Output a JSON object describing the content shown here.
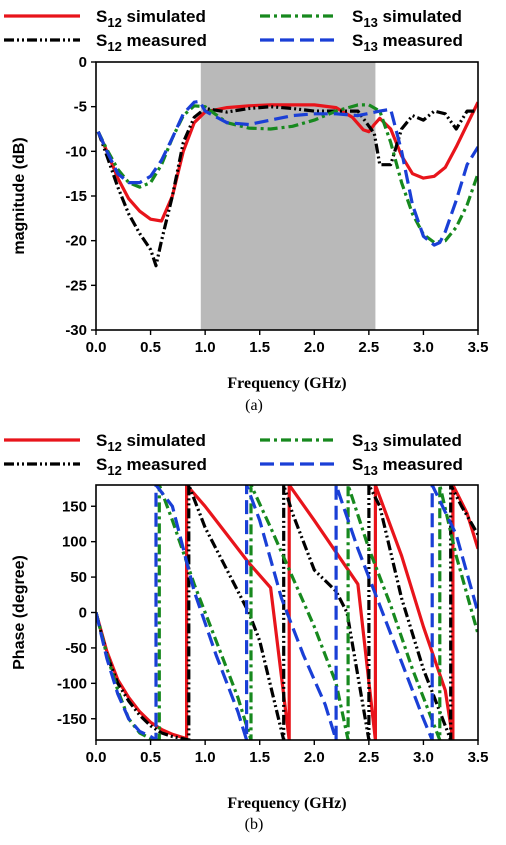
{
  "chart_data": [
    {
      "type": "line",
      "caption": "(a)",
      "xlabel": "Frequency (GHz)",
      "ylabel": "magnitude (dB)",
      "xlim": [
        0,
        3.5
      ],
      "ylim": [
        -30,
        0
      ],
      "xticks": [
        "0.0",
        "0.5",
        "1.0",
        "1.5",
        "2.0",
        "2.5",
        "3.0",
        "3.5"
      ],
      "yticks": [
        "0",
        "-5",
        "-10",
        "-15",
        "-20",
        "-25",
        "-30"
      ],
      "shaded_band": [
        0.96,
        2.56
      ],
      "legend": [
        {
          "base": "S",
          "sub": "12",
          "suffix": " simulated",
          "color": "#e8141b",
          "dash": "solid"
        },
        {
          "base": "S",
          "sub": "12",
          "suffix": " measured",
          "color": "#000000",
          "dash": "dashdotdot"
        },
        {
          "base": "S",
          "sub": "13",
          "suffix": " simulated",
          "color": "#17891e",
          "dash": "dashdot"
        },
        {
          "base": "S",
          "sub": "13",
          "suffix": " measured",
          "color": "#1a3fd6",
          "dash": "dash"
        }
      ],
      "series": [
        {
          "name": "S12 simulated",
          "color": "#e8141b",
          "dash": "solid",
          "x": [
            0.02,
            0.1,
            0.2,
            0.3,
            0.4,
            0.5,
            0.6,
            0.7,
            0.8,
            0.9,
            1.0,
            1.2,
            1.4,
            1.6,
            1.8,
            2.0,
            2.2,
            2.35,
            2.45,
            2.5,
            2.55,
            2.6,
            2.7,
            2.8,
            2.9,
            3.0,
            3.1,
            3.2,
            3.3,
            3.4,
            3.5
          ],
          "y": [
            -7.8,
            -10,
            -13,
            -15.3,
            -16.7,
            -17.6,
            -17.8,
            -15,
            -10,
            -6.8,
            -5.6,
            -5.1,
            -4.9,
            -4.8,
            -4.8,
            -4.8,
            -5.1,
            -6.2,
            -7.6,
            -7.8,
            -7,
            -6.3,
            -7.5,
            -10.5,
            -12.5,
            -13,
            -12.8,
            -11.8,
            -9.5,
            -7,
            -4.5
          ]
        },
        {
          "name": "S12 measured",
          "color": "#000000",
          "dash": "dashdotdot",
          "x": [
            0.02,
            0.1,
            0.2,
            0.3,
            0.4,
            0.5,
            0.55,
            0.6,
            0.7,
            0.8,
            0.9,
            1.0,
            1.2,
            1.4,
            1.6,
            1.8,
            2.0,
            2.2,
            2.4,
            2.55,
            2.6,
            2.7,
            2.8,
            2.9,
            3.0,
            3.1,
            3.2,
            3.3,
            3.4,
            3.5
          ],
          "y": [
            -7.8,
            -10.5,
            -14,
            -17,
            -19.2,
            -21,
            -22.8,
            -20,
            -15,
            -9,
            -6.2,
            -5.2,
            -5.6,
            -5.2,
            -5,
            -5.2,
            -5.5,
            -5.5,
            -5.5,
            -8,
            -11.5,
            -11.5,
            -7.5,
            -6,
            -6.5,
            -5.5,
            -5.8,
            -7.5,
            -5.5,
            -5.5
          ]
        },
        {
          "name": "S13 simulated",
          "color": "#17891e",
          "dash": "dashdot",
          "x": [
            0.02,
            0.1,
            0.2,
            0.3,
            0.4,
            0.5,
            0.6,
            0.7,
            0.8,
            0.9,
            1.0,
            1.2,
            1.4,
            1.6,
            1.8,
            2.0,
            2.2,
            2.4,
            2.5,
            2.6,
            2.7,
            2.8,
            2.9,
            3.0,
            3.1,
            3.2,
            3.3,
            3.4,
            3.5
          ],
          "y": [
            -7.8,
            -9.8,
            -12,
            -13.5,
            -14,
            -13.5,
            -11.5,
            -8.5,
            -6,
            -4.9,
            -5,
            -6.8,
            -7.4,
            -7.5,
            -7.2,
            -6.5,
            -5.5,
            -4.8,
            -4.8,
            -5.5,
            -9,
            -13.5,
            -17,
            -19.3,
            -20.2,
            -20,
            -18.5,
            -16,
            -12.5
          ]
        },
        {
          "name": "S13 measured",
          "color": "#1a3fd6",
          "dash": "dash",
          "x": [
            0.02,
            0.1,
            0.2,
            0.3,
            0.4,
            0.5,
            0.6,
            0.7,
            0.8,
            0.9,
            0.95,
            1.0,
            1.2,
            1.4,
            1.6,
            1.8,
            2.0,
            2.2,
            2.4,
            2.6,
            2.7,
            2.8,
            2.9,
            3.0,
            3.1,
            3.15,
            3.2,
            3.3,
            3.4,
            3.5
          ],
          "y": [
            -7.8,
            -10,
            -12.5,
            -13.5,
            -13.5,
            -12.8,
            -11,
            -8.5,
            -5.8,
            -4.5,
            -4.4,
            -5.5,
            -6.8,
            -7,
            -6.5,
            -6,
            -5.8,
            -5.8,
            -6,
            -5.5,
            -5.3,
            -10,
            -16,
            -19.5,
            -20.5,
            -20.2,
            -19,
            -15.5,
            -11.5,
            -9.5
          ]
        }
      ]
    },
    {
      "type": "line",
      "caption": "(b)",
      "xlabel": "Frequency (GHz)",
      "ylabel": "Phase (degree)",
      "xlim": [
        0,
        3.5
      ],
      "ylim": [
        -180,
        180
      ],
      "xticks": [
        "0.0",
        "0.5",
        "1.0",
        "1.5",
        "2.0",
        "2.5",
        "3.0",
        "3.5"
      ],
      "yticks": [
        "150",
        "100",
        "50",
        "0",
        "-50",
        "-100",
        "-150"
      ],
      "legend": [
        {
          "base": "S",
          "sub": "12",
          "suffix": " simulated",
          "color": "#e8141b",
          "dash": "solid"
        },
        {
          "base": "S",
          "sub": "12",
          "suffix": " measured",
          "color": "#000000",
          "dash": "dashdotdot"
        },
        {
          "base": "S",
          "sub": "13",
          "suffix": " simulated",
          "color": "#17891e",
          "dash": "dashdot"
        },
        {
          "base": "S",
          "sub": "13",
          "suffix": " measured",
          "color": "#1a3fd6",
          "dash": "dash"
        }
      ],
      "series": [
        {
          "name": "S12 simulated",
          "color": "#e8141b",
          "dash": "solid",
          "x": [
            0.0,
            0.1,
            0.2,
            0.3,
            0.4,
            0.5,
            0.6,
            0.7,
            0.83,
            0.83,
            1.0,
            1.2,
            1.4,
            1.6,
            1.77,
            1.77,
            2.0,
            2.2,
            2.4,
            2.56,
            2.56,
            2.8,
            3.0,
            3.2,
            3.27,
            3.27,
            3.4,
            3.5
          ],
          "y": [
            0,
            -55,
            -95,
            -120,
            -140,
            -155,
            -165,
            -172,
            -178,
            180,
            150,
            110,
            70,
            35,
            -180,
            180,
            130,
            85,
            40,
            -180,
            180,
            80,
            -20,
            -110,
            -180,
            180,
            140,
            90
          ]
        },
        {
          "name": "S12 measured",
          "color": "#000000",
          "dash": "dashdotdot",
          "x": [
            0.0,
            0.1,
            0.2,
            0.3,
            0.4,
            0.5,
            0.6,
            0.7,
            0.85,
            0.85,
            0.9,
            1.0,
            1.2,
            1.4,
            1.5,
            1.72,
            1.72,
            1.8,
            2.0,
            2.2,
            2.3,
            2.5,
            2.5,
            2.6,
            2.8,
            3.0,
            3.2,
            3.25,
            3.25,
            3.35,
            3.5
          ],
          "y": [
            0,
            -60,
            -100,
            -125,
            -145,
            -160,
            -170,
            -175,
            -180,
            180,
            160,
            120,
            60,
            0,
            -40,
            -180,
            180,
            140,
            60,
            30,
            0,
            -180,
            180,
            150,
            20,
            -80,
            -160,
            -180,
            180,
            150,
            110
          ]
        },
        {
          "name": "S13 simulated",
          "color": "#17891e",
          "dash": "dashdot",
          "x": [
            0.0,
            0.1,
            0.2,
            0.3,
            0.4,
            0.5,
            0.58,
            0.58,
            0.7,
            0.9,
            1.1,
            1.3,
            1.42,
            1.42,
            1.6,
            1.8,
            2.0,
            2.2,
            2.31,
            2.31,
            2.5,
            2.7,
            2.9,
            3.15,
            3.15,
            3.3,
            3.5
          ],
          "y": [
            0,
            -60,
            -110,
            -150,
            -170,
            -178,
            -180,
            180,
            130,
            40,
            -40,
            -120,
            -180,
            180,
            120,
            50,
            -20,
            -100,
            -180,
            180,
            90,
            10,
            -80,
            -180,
            180,
            80,
            -30
          ]
        },
        {
          "name": "S13 measured",
          "color": "#1a3fd6",
          "dash": "dash",
          "x": [
            0.0,
            0.1,
            0.2,
            0.3,
            0.4,
            0.5,
            0.55,
            0.55,
            0.7,
            0.9,
            1.1,
            1.3,
            1.38,
            1.38,
            1.5,
            1.7,
            1.9,
            2.1,
            2.2,
            2.2,
            2.4,
            2.6,
            2.8,
            3.0,
            3.08,
            3.08,
            3.3,
            3.5
          ],
          "y": [
            0,
            -65,
            -115,
            -150,
            -168,
            -175,
            -180,
            180,
            150,
            30,
            -60,
            -140,
            -180,
            180,
            130,
            20,
            -60,
            -130,
            -180,
            180,
            90,
            10,
            -70,
            -150,
            -180,
            180,
            110,
            0
          ]
        }
      ]
    }
  ]
}
